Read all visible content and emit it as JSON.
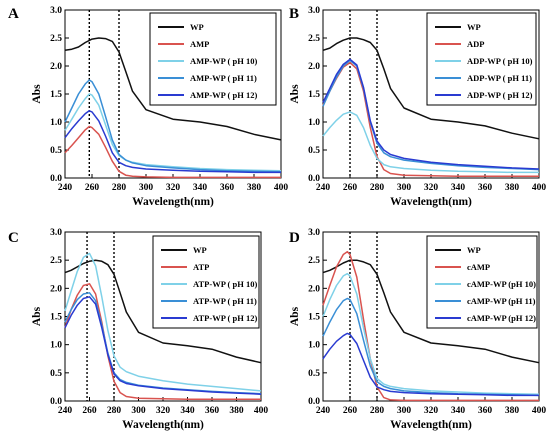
{
  "chart_data": [
    {
      "panel_label": "A",
      "type": "line",
      "xlabel": "Wavelength(nm)",
      "ylabel": "Abs",
      "xlim": [
        240,
        400
      ],
      "ylim": [
        0.0,
        3.0
      ],
      "x_ticks": [
        240,
        260,
        280,
        300,
        320,
        340,
        360,
        380,
        400
      ],
      "y_ticks": [
        0.0,
        0.5,
        1.0,
        1.5,
        2.0,
        2.5,
        3.0
      ],
      "reference_lines_x": [
        258,
        280
      ],
      "legend_position": "top-right",
      "series": [
        {
          "name": "WP",
          "color": "#111111",
          "x": [
            240,
            245,
            250,
            255,
            260,
            265,
            270,
            275,
            280,
            285,
            290,
            300,
            320,
            340,
            360,
            380,
            400
          ],
          "y": [
            2.28,
            2.3,
            2.34,
            2.42,
            2.48,
            2.5,
            2.49,
            2.44,
            2.25,
            1.9,
            1.55,
            1.22,
            1.05,
            1.0,
            0.92,
            0.78,
            0.68
          ]
        },
        {
          "name": "AMP",
          "color": "#d9534f",
          "x": [
            240,
            245,
            250,
            255,
            258,
            260,
            265,
            270,
            275,
            280,
            285,
            290,
            300,
            320,
            340,
            360,
            380,
            400
          ],
          "y": [
            0.45,
            0.58,
            0.72,
            0.86,
            0.92,
            0.9,
            0.78,
            0.55,
            0.3,
            0.12,
            0.05,
            0.03,
            0.02,
            0.01,
            0.01,
            0.01,
            0.01,
            0.01
          ]
        },
        {
          "name": "AMP-WP ( pH 10)",
          "color": "#7fd1e8",
          "x": [
            240,
            245,
            250,
            255,
            258,
            260,
            265,
            270,
            275,
            280,
            285,
            290,
            300,
            320,
            340,
            360,
            380,
            400
          ],
          "y": [
            0.85,
            1.05,
            1.25,
            1.42,
            1.5,
            1.48,
            1.3,
            0.95,
            0.6,
            0.4,
            0.32,
            0.28,
            0.24,
            0.2,
            0.17,
            0.15,
            0.14,
            0.13
          ]
        },
        {
          "name": "AMP-WP ( pH 11)",
          "color": "#3a8fd6",
          "x": [
            240,
            245,
            250,
            255,
            258,
            260,
            265,
            270,
            275,
            280,
            285,
            290,
            300,
            320,
            340,
            360,
            380,
            400
          ],
          "y": [
            1.0,
            1.25,
            1.5,
            1.68,
            1.75,
            1.72,
            1.5,
            1.1,
            0.68,
            0.42,
            0.32,
            0.27,
            0.22,
            0.18,
            0.15,
            0.13,
            0.12,
            0.11
          ]
        },
        {
          "name": "AMP-WP ( pH 12)",
          "color": "#2a3bd1",
          "x": [
            240,
            245,
            250,
            255,
            258,
            260,
            265,
            270,
            275,
            280,
            285,
            290,
            300,
            320,
            340,
            360,
            380,
            400
          ],
          "y": [
            0.72,
            0.88,
            1.02,
            1.15,
            1.2,
            1.18,
            1.02,
            0.75,
            0.45,
            0.28,
            0.22,
            0.19,
            0.16,
            0.14,
            0.12,
            0.11,
            0.1,
            0.1
          ]
        }
      ]
    },
    {
      "panel_label": "B",
      "type": "line",
      "xlabel": "Wavelength(nm)",
      "ylabel": "Abs",
      "xlim": [
        240,
        400
      ],
      "ylim": [
        0.0,
        3.0
      ],
      "x_ticks": [
        240,
        260,
        280,
        300,
        320,
        340,
        360,
        380,
        400
      ],
      "y_ticks": [
        0.0,
        0.5,
        1.0,
        1.5,
        2.0,
        2.5,
        3.0
      ],
      "reference_lines_x": [
        260,
        280
      ],
      "legend_position": "top-right",
      "series": [
        {
          "name": "WP",
          "color": "#111111",
          "x": [
            240,
            245,
            250,
            255,
            260,
            265,
            270,
            275,
            280,
            285,
            290,
            300,
            320,
            340,
            360,
            380,
            400
          ],
          "y": [
            2.28,
            2.32,
            2.4,
            2.46,
            2.5,
            2.5,
            2.47,
            2.42,
            2.28,
            1.95,
            1.6,
            1.25,
            1.05,
            1.0,
            0.93,
            0.8,
            0.7
          ]
        },
        {
          "name": "ADP",
          "color": "#d9534f",
          "x": [
            240,
            245,
            250,
            255,
            260,
            265,
            270,
            275,
            280,
            285,
            290,
            300,
            320,
            340,
            360,
            380,
            400
          ],
          "y": [
            1.3,
            1.55,
            1.78,
            1.98,
            2.06,
            1.95,
            1.55,
            0.9,
            0.38,
            0.15,
            0.08,
            0.05,
            0.04,
            0.03,
            0.03,
            0.03,
            0.03
          ]
        },
        {
          "name": "ADP-WP ( pH 10)",
          "color": "#7fd1e8",
          "x": [
            240,
            245,
            250,
            255,
            260,
            265,
            270,
            275,
            280,
            285,
            290,
            300,
            320,
            340,
            360,
            380,
            400
          ],
          "y": [
            0.75,
            0.9,
            1.03,
            1.14,
            1.18,
            1.12,
            0.9,
            0.58,
            0.35,
            0.24,
            0.2,
            0.17,
            0.14,
            0.12,
            0.11,
            0.1,
            0.1
          ]
        },
        {
          "name": "ADP-WP ( pH 11)",
          "color": "#3a8fd6",
          "x": [
            240,
            245,
            250,
            255,
            260,
            265,
            270,
            275,
            280,
            285,
            290,
            300,
            320,
            340,
            360,
            380,
            400
          ],
          "y": [
            1.28,
            1.55,
            1.8,
            2.0,
            2.1,
            2.0,
            1.6,
            1.0,
            0.62,
            0.45,
            0.38,
            0.32,
            0.26,
            0.22,
            0.19,
            0.17,
            0.15
          ]
        },
        {
          "name": "ADP-WP ( pH 12)",
          "color": "#2a3bd1",
          "x": [
            240,
            245,
            250,
            255,
            260,
            265,
            270,
            275,
            280,
            285,
            290,
            300,
            320,
            340,
            360,
            380,
            400
          ],
          "y": [
            1.35,
            1.6,
            1.85,
            2.03,
            2.12,
            2.02,
            1.62,
            1.02,
            0.66,
            0.5,
            0.42,
            0.35,
            0.28,
            0.24,
            0.21,
            0.18,
            0.16
          ]
        }
      ]
    },
    {
      "panel_label": "C",
      "type": "line",
      "xlabel": "Wavelength(nm)",
      "ylabel": "Abs",
      "xlim": [
        240,
        400
      ],
      "ylim": [
        0.0,
        3.0
      ],
      "x_ticks": [
        240,
        260,
        280,
        300,
        320,
        340,
        360,
        380,
        400
      ],
      "y_ticks": [
        0.0,
        0.5,
        1.0,
        1.5,
        2.0,
        2.5,
        3.0
      ],
      "reference_lines_x": [
        258,
        280
      ],
      "legend_position": "top-right",
      "series": [
        {
          "name": "WP",
          "color": "#111111",
          "x": [
            240,
            245,
            250,
            255,
            260,
            265,
            270,
            275,
            280,
            285,
            290,
            300,
            320,
            340,
            360,
            380,
            400
          ],
          "y": [
            2.28,
            2.32,
            2.38,
            2.44,
            2.48,
            2.5,
            2.48,
            2.42,
            2.25,
            1.92,
            1.58,
            1.22,
            1.03,
            0.98,
            0.92,
            0.78,
            0.68
          ]
        },
        {
          "name": "ATP",
          "color": "#d9534f",
          "x": [
            240,
            245,
            250,
            255,
            260,
            265,
            270,
            275,
            280,
            285,
            290,
            300,
            320,
            340,
            360,
            380,
            400
          ],
          "y": [
            1.3,
            1.62,
            1.88,
            2.05,
            2.08,
            1.9,
            1.4,
            0.8,
            0.35,
            0.15,
            0.08,
            0.05,
            0.04,
            0.03,
            0.03,
            0.03,
            0.03
          ]
        },
        {
          "name": "ATP-WP ( pH 10)",
          "color": "#7fd1e8",
          "x": [
            240,
            245,
            250,
            255,
            260,
            265,
            270,
            275,
            280,
            285,
            290,
            300,
            320,
            340,
            360,
            380,
            400
          ],
          "y": [
            1.6,
            1.95,
            2.3,
            2.55,
            2.62,
            2.4,
            1.85,
            1.25,
            0.8,
            0.6,
            0.52,
            0.44,
            0.36,
            0.3,
            0.26,
            0.22,
            0.18
          ]
        },
        {
          "name": "ATP-WP ( pH 11)",
          "color": "#3a8fd6",
          "x": [
            240,
            245,
            250,
            255,
            260,
            265,
            270,
            275,
            280,
            285,
            290,
            300,
            320,
            340,
            360,
            380,
            400
          ],
          "y": [
            1.4,
            1.62,
            1.8,
            1.9,
            1.92,
            1.78,
            1.35,
            0.85,
            0.5,
            0.38,
            0.33,
            0.28,
            0.23,
            0.2,
            0.17,
            0.15,
            0.13
          ]
        },
        {
          "name": "ATP-WP ( pH 12)",
          "color": "#2a3bd1",
          "x": [
            240,
            245,
            250,
            255,
            260,
            265,
            270,
            275,
            280,
            285,
            290,
            300,
            320,
            340,
            360,
            380,
            400
          ],
          "y": [
            1.3,
            1.52,
            1.7,
            1.82,
            1.85,
            1.72,
            1.3,
            0.82,
            0.48,
            0.36,
            0.31,
            0.27,
            0.22,
            0.19,
            0.16,
            0.14,
            0.12
          ]
        }
      ]
    },
    {
      "panel_label": "D",
      "type": "line",
      "xlabel": "Wavelength(nm)",
      "ylabel": "Abs",
      "xlim": [
        240,
        400
      ],
      "ylim": [
        0.0,
        3.0
      ],
      "x_ticks": [
        240,
        260,
        280,
        300,
        320,
        340,
        360,
        380,
        400
      ],
      "y_ticks": [
        0.0,
        0.5,
        1.0,
        1.5,
        2.0,
        2.5,
        3.0
      ],
      "reference_lines_x": [
        260,
        280
      ],
      "legend_position": "top-right",
      "series": [
        {
          "name": "WP",
          "color": "#111111",
          "x": [
            240,
            245,
            250,
            255,
            260,
            265,
            270,
            275,
            280,
            285,
            290,
            300,
            320,
            340,
            360,
            380,
            400
          ],
          "y": [
            2.28,
            2.32,
            2.38,
            2.45,
            2.5,
            2.5,
            2.47,
            2.42,
            2.25,
            1.92,
            1.58,
            1.22,
            1.03,
            0.98,
            0.92,
            0.78,
            0.68
          ]
        },
        {
          "name": "cAMP",
          "color": "#d9534f",
          "x": [
            240,
            245,
            250,
            255,
            258,
            260,
            265,
            270,
            275,
            280,
            285,
            290,
            300,
            320,
            340,
            360,
            380,
            400
          ],
          "y": [
            1.7,
            2.05,
            2.38,
            2.6,
            2.65,
            2.6,
            2.2,
            1.45,
            0.75,
            0.25,
            0.06,
            0.02,
            0.01,
            0.01,
            0.01,
            0.01,
            0.01,
            0.01
          ]
        },
        {
          "name": "cAMP-WP (pH 10)",
          "color": "#7fd1e8",
          "x": [
            240,
            245,
            250,
            255,
            258,
            260,
            265,
            270,
            275,
            280,
            285,
            290,
            300,
            320,
            340,
            360,
            380,
            400
          ],
          "y": [
            1.5,
            1.8,
            2.05,
            2.22,
            2.26,
            2.22,
            1.9,
            1.3,
            0.75,
            0.4,
            0.3,
            0.26,
            0.22,
            0.18,
            0.16,
            0.14,
            0.13,
            0.12
          ]
        },
        {
          "name": "cAMP-WP (pH 11)",
          "color": "#3a8fd6",
          "x": [
            240,
            245,
            250,
            255,
            258,
            260,
            265,
            270,
            275,
            280,
            285,
            290,
            300,
            320,
            340,
            360,
            380,
            400
          ],
          "y": [
            1.15,
            1.4,
            1.62,
            1.78,
            1.82,
            1.8,
            1.55,
            1.08,
            0.62,
            0.34,
            0.26,
            0.22,
            0.18,
            0.15,
            0.13,
            0.12,
            0.11,
            0.1
          ]
        },
        {
          "name": "cAMP-WP (pH 12)",
          "color": "#2a3bd1",
          "x": [
            240,
            245,
            250,
            255,
            258,
            260,
            265,
            270,
            275,
            280,
            285,
            290,
            300,
            320,
            340,
            360,
            380,
            400
          ],
          "y": [
            0.75,
            0.92,
            1.06,
            1.16,
            1.2,
            1.18,
            1.02,
            0.72,
            0.42,
            0.25,
            0.2,
            0.17,
            0.15,
            0.13,
            0.12,
            0.11,
            0.1,
            0.1
          ]
        }
      ]
    }
  ]
}
